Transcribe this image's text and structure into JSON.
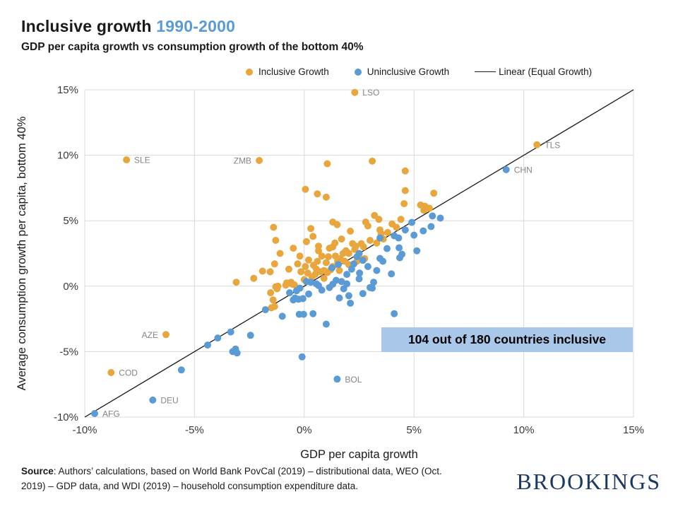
{
  "header": {
    "title": "Inclusive growth",
    "title_year": "1990-2000",
    "subtitle": "GDP per capita growth vs consumption growth of the bottom 40%"
  },
  "legend": {
    "inclusive": "Inclusive Growth",
    "uninclusive": "Uninclusive Growth",
    "linear": "Linear (Equal Growth)"
  },
  "annotation": {
    "text": "104 out of 180 countries inclusive"
  },
  "source": {
    "label": "Source",
    "line1": ": Authors’ calculations, based on World Bank PovCal (2019) – distributional data, WEO (Oct.",
    "line2": "2019) – GDP data, and WDI (2019) – household consumption expenditure data."
  },
  "logo": {
    "text": "BROOKINGS"
  },
  "chart_data": {
    "type": "scatter",
    "title": "Inclusive growth 1990-2000",
    "xlabel": "GDP per capita growth",
    "ylabel": "Average consumption growth per capita, bottom 40%",
    "xlim": [
      -10,
      15
    ],
    "ylim": [
      -10,
      15
    ],
    "grid": true,
    "legend_position": "top",
    "xticks": [
      {
        "v": -10,
        "label": "-10%"
      },
      {
        "v": -5,
        "label": "-5%"
      },
      {
        "v": 0,
        "label": "0%"
      },
      {
        "v": 5,
        "label": "5%"
      },
      {
        "v": 10,
        "label": "10%"
      },
      {
        "v": 15,
        "label": "15%"
      }
    ],
    "yticks": [
      {
        "v": -10,
        "label": "-10%"
      },
      {
        "v": -5,
        "label": "-5%"
      },
      {
        "v": 0,
        "label": "0%"
      },
      {
        "v": 5,
        "label": "5%"
      },
      {
        "v": 10,
        "label": "10%"
      },
      {
        "v": 15,
        "label": "15%"
      }
    ],
    "colors": {
      "inclusive": "#E9A63C",
      "uninclusive": "#5B9BD5",
      "grid": "#D9D9D9",
      "tick": "#3a3a3a",
      "point_label": "#848484",
      "annotation_bg": "#A9C7E8",
      "title_accent": "#5B9BD5",
      "logo_navy": "#1C3A63"
    },
    "reference_line": {
      "name": "Linear (Equal Growth)",
      "from": [
        -10,
        -10
      ],
      "to": [
        15,
        15
      ]
    },
    "series": [
      {
        "name": "Inclusive Growth",
        "key": "inclusive",
        "color": "#E9A63C",
        "points": [
          [
            -8.1,
            9.65
          ],
          [
            -2.05,
            9.6
          ],
          [
            2.3,
            14.8
          ],
          [
            10.6,
            10.8
          ],
          [
            -8.8,
            -6.6
          ],
          [
            -6.3,
            -3.7
          ],
          [
            1.05,
            9.35
          ],
          [
            3.1,
            9.55
          ],
          [
            4.6,
            8.8
          ],
          [
            0.05,
            7.4
          ],
          [
            0.6,
            7.05
          ],
          [
            1.0,
            6.8
          ],
          [
            4.6,
            7.3
          ],
          [
            5.9,
            7.1
          ],
          [
            4.55,
            6.3
          ],
          [
            5.3,
            6.2
          ],
          [
            5.5,
            6.1
          ],
          [
            5.7,
            5.95
          ],
          [
            5.45,
            5.8
          ],
          [
            3.2,
            5.4
          ],
          [
            3.4,
            5.1
          ],
          [
            4.4,
            5.1
          ],
          [
            2.8,
            4.9
          ],
          [
            1.3,
            4.9
          ],
          [
            1.5,
            4.7
          ],
          [
            2.9,
            4.6
          ],
          [
            -1.4,
            4.5
          ],
          [
            4.2,
            4.5
          ],
          [
            0.3,
            4.4
          ],
          [
            3.45,
            4.3
          ],
          [
            2.1,
            4.2
          ],
          [
            3.8,
            4.1
          ],
          [
            3.5,
            4.0
          ],
          [
            0.4,
            3.8
          ],
          [
            1.7,
            3.6
          ],
          [
            3.6,
            3.6
          ],
          [
            -1.3,
            3.5
          ],
          [
            3.0,
            3.5
          ],
          [
            0.1,
            3.4
          ],
          [
            1.4,
            3.3
          ],
          [
            2.2,
            3.25
          ],
          [
            2.6,
            3.25
          ],
          [
            3.3,
            3.3
          ],
          [
            2.35,
            3.05
          ],
          [
            0.65,
            3.05
          ],
          [
            2.7,
            3.0
          ],
          [
            1.3,
            3.0
          ],
          [
            1.15,
            2.9
          ],
          [
            -0.5,
            2.9
          ],
          [
            2.3,
            2.8
          ],
          [
            1.9,
            2.7
          ],
          [
            0.65,
            2.7
          ],
          [
            -1.1,
            2.5
          ],
          [
            1.77,
            2.5
          ],
          [
            2.03,
            2.5
          ],
          [
            1.42,
            2.3
          ],
          [
            -0.2,
            2.3
          ],
          [
            0.8,
            2.3
          ],
          [
            1.1,
            2.25
          ],
          [
            2.5,
            2.2
          ],
          [
            1.64,
            2.1
          ],
          [
            2.75,
            2.1
          ],
          [
            0.2,
            2.0
          ],
          [
            1.52,
            1.9
          ],
          [
            1.84,
            1.9
          ],
          [
            2.4,
            1.9
          ],
          [
            0.6,
            1.9
          ],
          [
            1.0,
            1.8
          ],
          [
            -0.3,
            1.7
          ],
          [
            -1.35,
            1.7
          ],
          [
            2.03,
            1.65
          ],
          [
            0.42,
            1.6
          ],
          [
            0.05,
            1.5
          ],
          [
            1.3,
            1.5
          ],
          [
            -0.7,
            1.3
          ],
          [
            0.55,
            1.3
          ],
          [
            1.2,
            1.25
          ],
          [
            0.9,
            1.2
          ],
          [
            1.6,
            1.2
          ],
          [
            -1.9,
            1.15
          ],
          [
            -1.55,
            1.1
          ],
          [
            -0.15,
            1.1
          ],
          [
            0.74,
            1.1
          ],
          [
            1.06,
            1.05
          ],
          [
            0.16,
            1.0
          ],
          [
            0.5,
            0.9
          ],
          [
            0.35,
            0.7
          ],
          [
            0.9,
            0.6
          ],
          [
            -2.3,
            0.6
          ],
          [
            0.0,
            0.5
          ],
          [
            -3.1,
            0.3
          ],
          [
            -0.6,
            0.3
          ],
          [
            -0.8,
            0.25
          ],
          [
            -0.55,
            0.15
          ],
          [
            -0.45,
            0.1
          ],
          [
            -0.84,
            0.08
          ],
          [
            -1.2,
            0.0
          ],
          [
            -1.3,
            -0.05
          ],
          [
            -1.24,
            -0.2
          ],
          [
            -1.53,
            -0.5
          ],
          [
            -1.42,
            -1.05
          ],
          [
            -1.35,
            -1.55
          ],
          [
            -1.5,
            -1.65
          ],
          [
            4.0,
            4.75
          ]
        ]
      },
      {
        "name": "Uninclusive Growth",
        "key": "uninclusive",
        "color": "#5B9BD5",
        "points": [
          [
            -9.55,
            -9.73
          ],
          [
            -6.9,
            -8.7
          ],
          [
            1.5,
            -7.1
          ],
          [
            9.2,
            8.9
          ],
          [
            -5.6,
            -6.4
          ],
          [
            -4.4,
            -4.5
          ],
          [
            -3.94,
            -3.96
          ],
          [
            -3.35,
            -3.5
          ],
          [
            -2.45,
            -3.75
          ],
          [
            -3.26,
            -5.0
          ],
          [
            -3.13,
            -4.8
          ],
          [
            -3.06,
            -5.1
          ],
          [
            -1.77,
            -1.8
          ],
          [
            -1.0,
            -2.3
          ],
          [
            -0.23,
            -2.15
          ],
          [
            -0.03,
            -2.15
          ],
          [
            0.4,
            -2.1
          ],
          [
            1.0,
            -2.9
          ],
          [
            4.1,
            -2.1
          ],
          [
            -0.1,
            -5.4
          ],
          [
            2.03,
            -0.73
          ],
          [
            2.67,
            -0.56
          ],
          [
            3.0,
            -0.1
          ],
          [
            3.16,
            0.3
          ],
          [
            3.1,
            -0.15
          ],
          [
            -0.5,
            -1.05
          ],
          [
            -0.26,
            -1.0
          ],
          [
            -0.06,
            -0.95
          ],
          [
            -0.42,
            -0.9
          ],
          [
            -0.67,
            -0.5
          ],
          [
            -0.2,
            -0.15
          ],
          [
            -0.35,
            -0.35
          ],
          [
            0.1,
            0.35
          ],
          [
            0.3,
            0.3
          ],
          [
            0.55,
            0.18
          ],
          [
            0.65,
            0.05
          ],
          [
            1.45,
            0.45
          ],
          [
            1.7,
            0.35
          ],
          [
            1.94,
            0.9
          ],
          [
            2.16,
            1.3
          ],
          [
            2.26,
            1.7
          ],
          [
            2.4,
            2.25
          ],
          [
            2.5,
            2.5
          ],
          [
            2.67,
            1.97
          ],
          [
            2.52,
            1.0
          ],
          [
            1.94,
            0.18
          ],
          [
            1.26,
            1.4
          ],
          [
            1.55,
            1.65
          ],
          [
            2.9,
            1.5
          ],
          [
            3.3,
            1.2
          ],
          [
            3.45,
            2.12
          ],
          [
            3.58,
            1.9
          ],
          [
            3.45,
            3.68
          ],
          [
            3.77,
            2.87
          ],
          [
            4.1,
            3.85
          ],
          [
            4.3,
            3.68
          ],
          [
            4.32,
            2.93
          ],
          [
            4.45,
            2.44
          ],
          [
            4.35,
            2.17
          ],
          [
            3.97,
            0.94
          ],
          [
            5.13,
            2.7
          ],
          [
            4.9,
            4.87
          ],
          [
            5.78,
            4.55
          ],
          [
            5.42,
            4.22
          ],
          [
            5.84,
            5.36
          ],
          [
            6.2,
            5.2
          ],
          [
            4.6,
            4.3
          ],
          [
            5.0,
            3.9
          ],
          [
            0.8,
            -0.3
          ],
          [
            1.15,
            -0.1
          ],
          [
            1.3,
            0.15
          ],
          [
            1.6,
            -0.9
          ],
          [
            2.1,
            -1.3
          ],
          [
            0.2,
            -0.6
          ],
          [
            1.8,
            -0.2
          ],
          [
            2.5,
            0.56
          ]
        ]
      }
    ],
    "point_labels": [
      {
        "label": "LSO",
        "x": 2.3,
        "y": 14.8,
        "side": "right"
      },
      {
        "label": "TLS",
        "x": 10.6,
        "y": 10.8,
        "side": "right"
      },
      {
        "label": "CHN",
        "x": 9.2,
        "y": 8.9,
        "side": "right"
      },
      {
        "label": "SLE",
        "x": -8.1,
        "y": 9.65,
        "side": "right"
      },
      {
        "label": "ZMB",
        "x": -2.05,
        "y": 9.6,
        "side": "left"
      },
      {
        "label": "AZE",
        "x": -6.3,
        "y": -3.7,
        "side": "left"
      },
      {
        "label": "COD",
        "x": -8.8,
        "y": -6.6,
        "side": "right"
      },
      {
        "label": "DEU",
        "x": -6.9,
        "y": -8.7,
        "side": "right"
      },
      {
        "label": "AFG",
        "x": -9.55,
        "y": -9.73,
        "side": "right"
      },
      {
        "label": "BOL",
        "x": 1.5,
        "y": -7.1,
        "side": "right"
      }
    ]
  }
}
